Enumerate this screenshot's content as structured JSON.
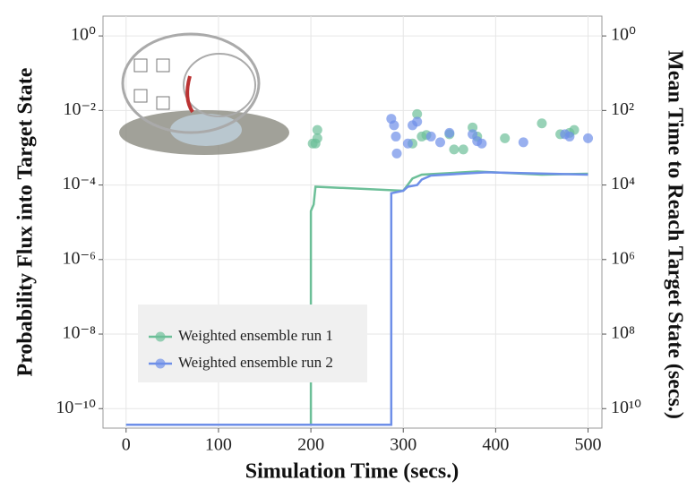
{
  "chart_data": {
    "type": "line",
    "x_label": "Simulation Time (secs.)",
    "y_label": "Probability Flux into Target State",
    "y2_label": "Mean Time to Reach Target State (secs.)",
    "xlim": [
      -25,
      515
    ],
    "xticks": [
      0,
      100,
      200,
      300,
      400,
      500
    ],
    "y_scale": "log",
    "ylim": [
      3e-11,
      3.4
    ],
    "yticks": [
      {
        "value": 1,
        "label": "10⁰"
      },
      {
        "value": 0.01,
        "label": "10⁻²"
      },
      {
        "value": 0.0001,
        "label": "10⁻⁴"
      },
      {
        "value": 1e-06,
        "label": "10⁻⁶"
      },
      {
        "value": 1e-08,
        "label": "10⁻⁸"
      },
      {
        "value": 1e-10,
        "label": "10⁻¹⁰"
      }
    ],
    "y2_scale": "log",
    "y2_inverted": true,
    "y2lim": [
      0.294,
      33300000000.0
    ],
    "y2ticks": [
      {
        "value": 1,
        "label": "10⁰"
      },
      {
        "value": 100,
        "label": "10²"
      },
      {
        "value": 10000,
        "label": "10⁴"
      },
      {
        "value": 1000000,
        "label": "10⁶"
      },
      {
        "value": 100000000,
        "label": "10⁸"
      },
      {
        "value": 10000000000,
        "label": "10¹⁰"
      }
    ],
    "grid": true,
    "legend": "lower-left",
    "series": [
      {
        "name": "Weighted ensemble run 1",
        "color": "#6cbf98",
        "x": [
          0,
          200,
          200,
          203,
          205,
          300,
          310,
          320,
          380,
          450,
          500
        ],
        "values": [
          3.7e-11,
          3.7e-11,
          2e-05,
          3e-05,
          9e-05,
          7e-05,
          0.00015,
          0.00019,
          0.00023,
          0.00019,
          0.0002
        ],
        "marker_x": [
          202,
          205,
          207,
          207,
          310,
          315,
          320,
          325,
          350,
          355,
          365,
          375,
          380,
          410,
          450,
          470,
          480,
          485
        ],
        "marker_values": [
          0.0013,
          0.0013,
          0.003,
          0.0018,
          0.0013,
          0.008,
          0.002,
          0.0022,
          0.0023,
          0.0009,
          0.0009,
          0.0035,
          0.002,
          0.0018,
          0.0045,
          0.0023,
          0.0025,
          0.003
        ]
      },
      {
        "name": "Weighted ensemble run 2",
        "color": "#6e8fe8",
        "x": [
          0,
          287,
          287,
          300,
          305,
          315,
          320,
          330,
          390,
          500
        ],
        "values": [
          3.7e-11,
          3.7e-11,
          6e-05,
          7e-05,
          9e-05,
          0.0001,
          0.00014,
          0.00018,
          0.00022,
          0.00019
        ],
        "marker_x": [
          287,
          290,
          292,
          293,
          305,
          310,
          315,
          330,
          340,
          350,
          375,
          380,
          385,
          430,
          475,
          480,
          500
        ],
        "marker_values": [
          0.006,
          0.004,
          0.002,
          0.0007,
          0.0013,
          0.004,
          0.005,
          0.002,
          0.0014,
          0.0025,
          0.0023,
          0.0015,
          0.0013,
          0.0014,
          0.0023,
          0.002,
          0.0018
        ]
      }
    ]
  }
}
